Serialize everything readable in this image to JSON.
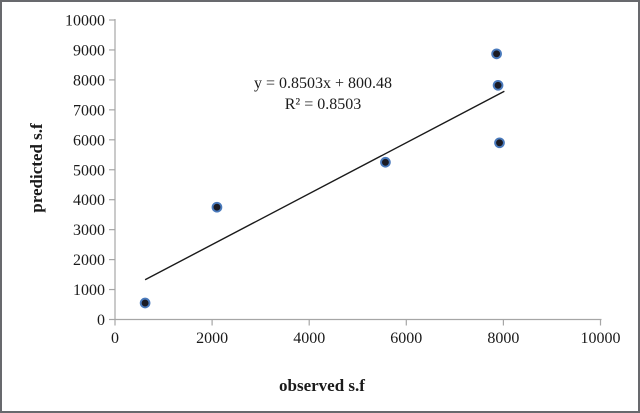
{
  "figure": {
    "background": "#ffffff",
    "border_color": "#68696d"
  },
  "chart_data": {
    "type": "scatter",
    "title": "",
    "xlabel": "observed s.f",
    "ylabel": "predicted s.f",
    "xlim": [
      0,
      10000
    ],
    "ylim": [
      0,
      10000
    ],
    "x_ticks": [
      0,
      2000,
      4000,
      6000,
      8000,
      10000
    ],
    "y_ticks": [
      0,
      1000,
      2000,
      3000,
      4000,
      5000,
      6000,
      7000,
      8000,
      9000,
      10000
    ],
    "grid": false,
    "legend": false,
    "points": [
      {
        "x": 620,
        "y": 550
      },
      {
        "x": 2100,
        "y": 3750
      },
      {
        "x": 5570,
        "y": 5250
      },
      {
        "x": 7860,
        "y": 8870
      },
      {
        "x": 7890,
        "y": 7820
      },
      {
        "x": 7920,
        "y": 5900
      }
    ],
    "trendline": {
      "slope": 0.8503,
      "intercept": 800.48,
      "x_start": 620,
      "x_end": 8020,
      "label": "y = 0.8503x + 800.48",
      "r2_label": "R² = 0.8503"
    },
    "colors": {
      "marker_fill": "#1b1b24",
      "marker_stroke": "#4a7abc",
      "trendline": "#1a1a1a",
      "axis": "#a6a6a6",
      "tick_label": "#1a1a1a",
      "annotation_text": "#1c1c1c"
    }
  }
}
